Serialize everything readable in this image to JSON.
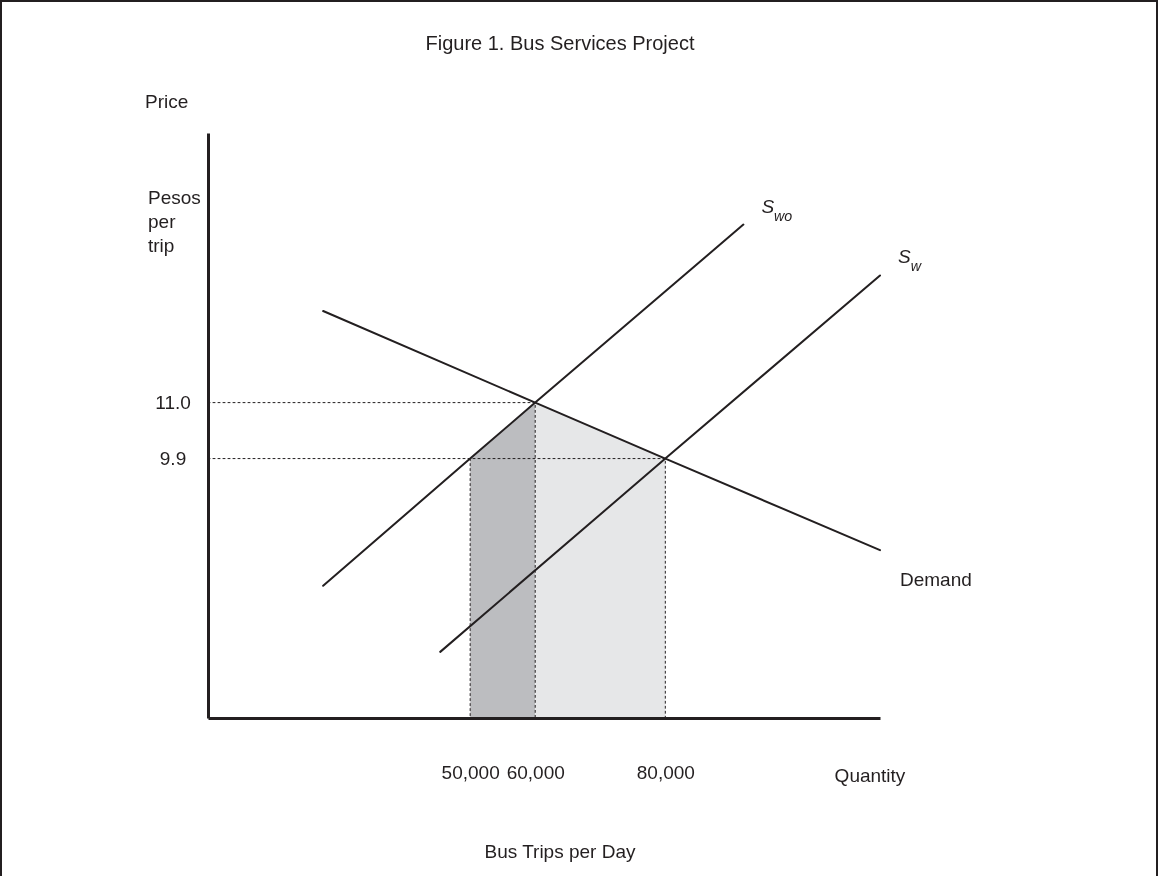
{
  "chart_data": {
    "type": "line",
    "title": "Figure 1. Bus Services Project",
    "xlabel": "Bus Trips per Day",
    "ylabel": "Price",
    "annotations": [
      "Pesos per trip",
      "Quantity"
    ],
    "xlim": [
      9700,
      113000
    ],
    "ylim": [
      4.8,
      16.3
    ],
    "xticks": [
      {
        "value": 50000,
        "label": "50,000"
      },
      {
        "value": 60000,
        "label": "60,000"
      },
      {
        "value": 80000,
        "label": "80,000"
      }
    ],
    "yticks": [
      {
        "value": 11.0,
        "label": "11.0"
      },
      {
        "value": 9.9,
        "label": "9.9"
      }
    ],
    "grid": false,
    "legend": false,
    "marker": "none",
    "series": [
      {
        "type": "area",
        "color": "#bcbdc0",
        "x": [
          50000,
          60000
        ],
        "values": [
          9.9,
          11.0
        ]
      },
      {
        "type": "area",
        "color": "#e6e7e8",
        "x": [
          60000,
          80000
        ],
        "values": [
          11.0,
          9.9
        ]
      },
      {
        "color": "#231f20",
        "line_style": "dotted",
        "x": [
          9700,
          60000,
          60000
        ],
        "values": [
          11.0,
          11.0,
          4.8
        ]
      },
      {
        "color": "#231f20",
        "line_style": "dotted",
        "x": [
          9700,
          80000,
          80000
        ],
        "values": [
          9.9,
          9.9,
          4.8
        ]
      },
      {
        "color": "#231f20",
        "line_style": "dotted",
        "x": [
          50000,
          50000
        ],
        "values": [
          9.9,
          4.8
        ]
      },
      {
        "name": "S$_{wo}$",
        "color": "#231f20",
        "line_style": "solid",
        "x": [
          27400,
          50000,
          60000,
          92000
        ],
        "values": [
          7.4,
          9.9,
          11.0,
          14.5
        ]
      },
      {
        "name": "S$_{w}$",
        "color": "#231f20",
        "line_style": "solid",
        "x": [
          45400,
          80000,
          113000
        ],
        "values": [
          6.1,
          9.9,
          13.5
        ]
      },
      {
        "name": "Demand",
        "color": "#231f20",
        "line_style": "solid",
        "x": [
          27400,
          60000,
          80000,
          113000
        ],
        "values": [
          12.8,
          11.0,
          9.9,
          8.1
        ]
      }
    ]
  }
}
